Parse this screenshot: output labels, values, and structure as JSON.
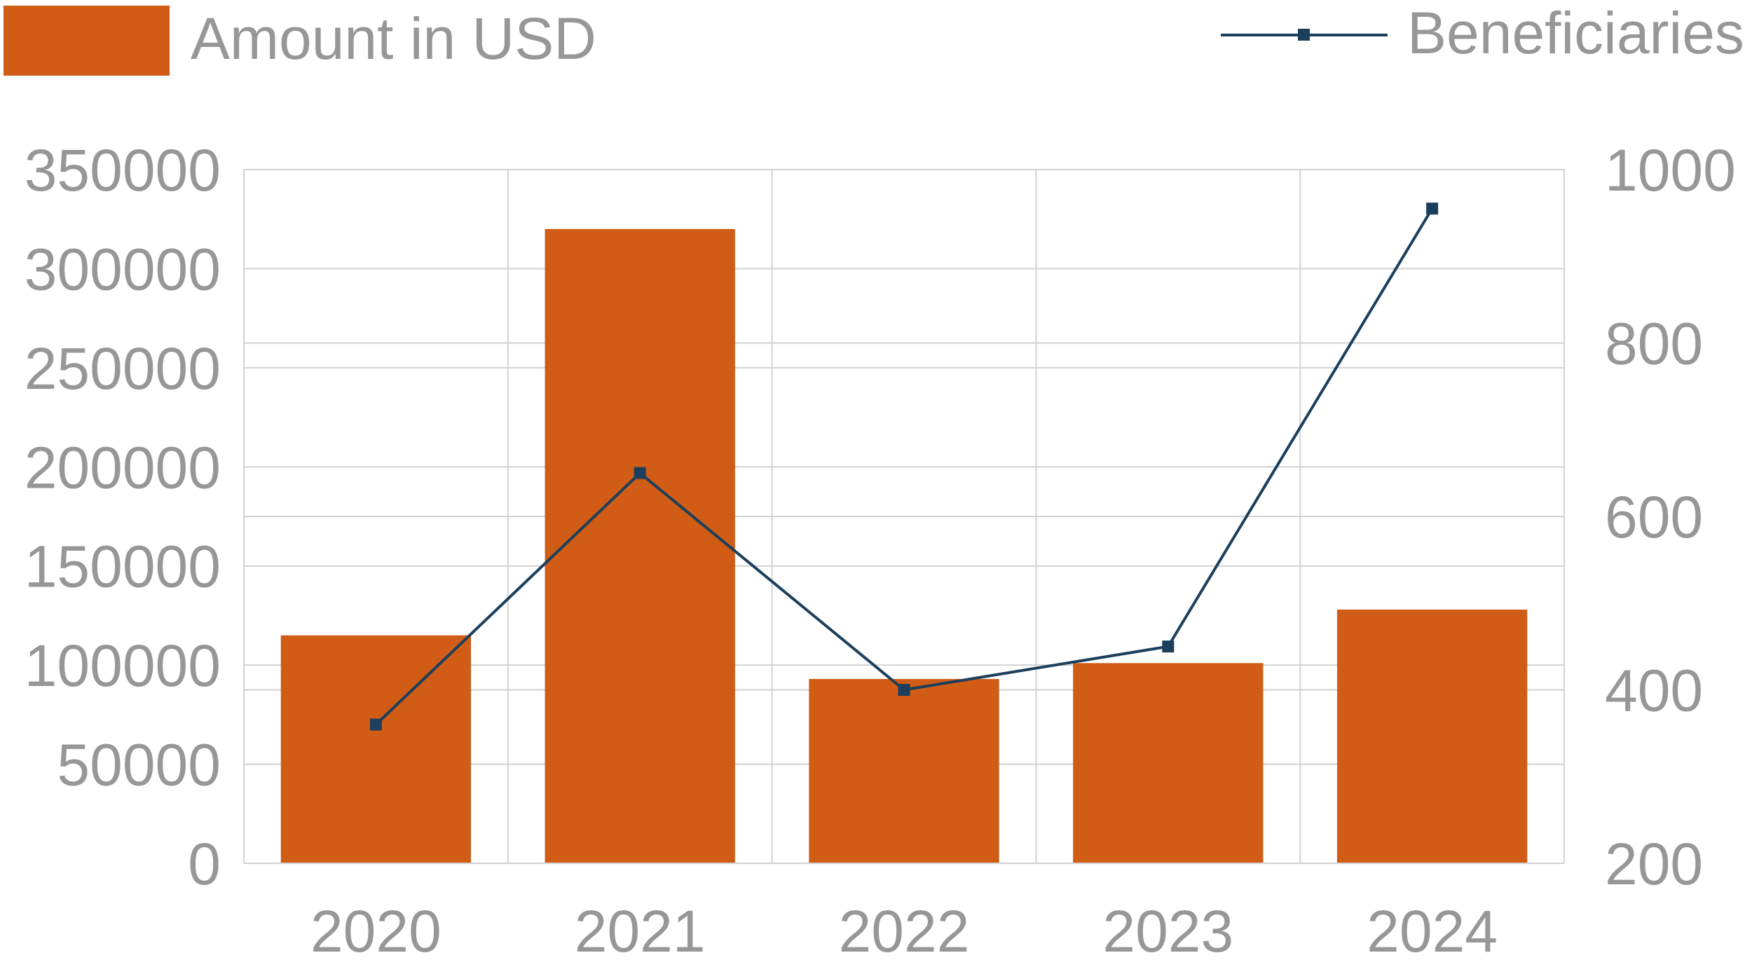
{
  "chart_data": {
    "type": "bar",
    "categories": [
      "2020",
      "2021",
      "2022",
      "2023",
      "2024"
    ],
    "series": [
      {
        "name": "Amount in USD",
        "type": "bar",
        "axis": "left",
        "color": "#d05c16",
        "values": [
          115000,
          320000,
          93000,
          101000,
          128000
        ]
      },
      {
        "name": "Beneficiaries",
        "type": "line",
        "axis": "right",
        "color": "#1b3f5c",
        "marker": "square",
        "values": [
          360,
          650,
          400,
          450,
          955
        ]
      }
    ],
    "y_left": {
      "min": 0,
      "max": 350000,
      "ticks": [
        0,
        50000,
        100000,
        150000,
        200000,
        250000,
        300000,
        350000
      ],
      "tick_labels": [
        "0",
        "50000",
        "100000",
        "150000",
        "200000",
        "250000",
        "300000",
        "350000"
      ]
    },
    "y_right": {
      "min": 200,
      "max": 1000,
      "ticks": [
        200,
        400,
        600,
        800,
        1000
      ],
      "tick_labels": [
        "200",
        "400",
        "600",
        "800",
        "1000"
      ]
    },
    "grid": true,
    "legend_position": "top",
    "title": "",
    "xlabel": "",
    "ylabel": ""
  }
}
